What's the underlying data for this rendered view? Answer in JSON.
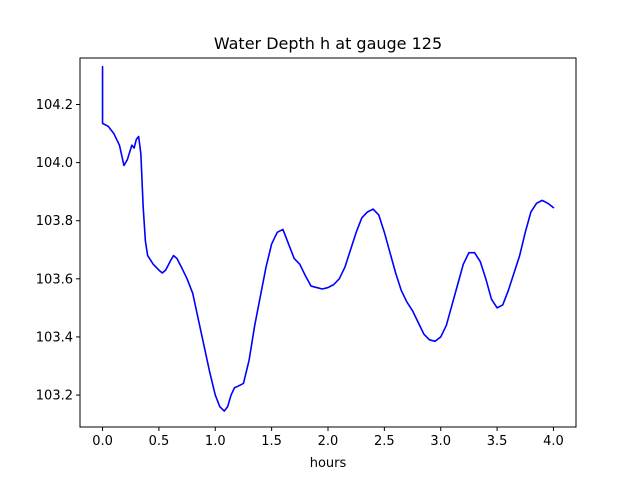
{
  "chart_data": {
    "type": "line",
    "title": "Water Depth h at gauge 125",
    "xlabel": "hours",
    "ylabel": "",
    "xlim": [
      -0.2,
      4.2
    ],
    "ylim": [
      103.09,
      104.36
    ],
    "xticks": [
      0.0,
      0.5,
      1.0,
      1.5,
      2.0,
      2.5,
      3.0,
      3.5,
      4.0
    ],
    "xtick_labels": [
      "0.0",
      "0.5",
      "1.0",
      "1.5",
      "2.0",
      "2.5",
      "3.0",
      "3.5",
      "4.0"
    ],
    "yticks": [
      103.2,
      103.4,
      103.6,
      103.8,
      104.0,
      104.2
    ],
    "ytick_labels": [
      "103.2",
      "103.4",
      "103.6",
      "103.8",
      "104.0",
      "104.2"
    ],
    "grid": false,
    "series": [
      {
        "color": "#0000ff",
        "x": [
          0.0,
          0.0,
          0.0,
          0.05,
          0.1,
          0.15,
          0.19,
          0.22,
          0.26,
          0.28,
          0.3,
          0.32,
          0.34,
          0.36,
          0.38,
          0.4,
          0.45,
          0.5,
          0.53,
          0.56,
          0.6,
          0.63,
          0.66,
          0.7,
          0.75,
          0.8,
          0.85,
          0.9,
          0.95,
          1.0,
          1.04,
          1.08,
          1.11,
          1.14,
          1.17,
          1.2,
          1.25,
          1.3,
          1.35,
          1.4,
          1.45,
          1.5,
          1.55,
          1.6,
          1.65,
          1.7,
          1.75,
          1.8,
          1.85,
          1.9,
          1.95,
          2.0,
          2.05,
          2.1,
          2.15,
          2.2,
          2.25,
          2.3,
          2.35,
          2.4,
          2.45,
          2.5,
          2.55,
          2.6,
          2.65,
          2.7,
          2.75,
          2.8,
          2.85,
          2.9,
          2.95,
          3.0,
          3.05,
          3.1,
          3.15,
          3.2,
          3.25,
          3.3,
          3.35,
          3.4,
          3.45,
          3.5,
          3.55,
          3.6,
          3.65,
          3.7,
          3.75,
          3.8,
          3.85,
          3.9,
          3.95,
          4.0
        ],
        "y": [
          104.33,
          104.2,
          104.135,
          104.125,
          104.1,
          104.06,
          103.99,
          104.01,
          104.06,
          104.05,
          104.08,
          104.09,
          104.03,
          103.85,
          103.73,
          103.68,
          103.65,
          103.63,
          103.62,
          103.63,
          103.66,
          103.68,
          103.67,
          103.64,
          103.6,
          103.55,
          103.46,
          103.37,
          103.28,
          103.2,
          103.16,
          103.145,
          103.16,
          103.2,
          103.225,
          103.23,
          103.24,
          103.32,
          103.44,
          103.54,
          103.64,
          103.72,
          103.76,
          103.77,
          103.72,
          103.67,
          103.65,
          103.61,
          103.575,
          103.57,
          103.565,
          103.57,
          103.58,
          103.6,
          103.64,
          103.7,
          103.76,
          103.81,
          103.83,
          103.84,
          103.82,
          103.76,
          103.69,
          103.62,
          103.56,
          103.52,
          103.49,
          103.45,
          103.41,
          103.39,
          103.385,
          103.4,
          103.44,
          103.51,
          103.58,
          103.65,
          103.69,
          103.69,
          103.66,
          103.6,
          103.53,
          103.5,
          103.51,
          103.56,
          103.62,
          103.68,
          103.76,
          103.83,
          103.86,
          103.87,
          103.86,
          103.845
        ]
      }
    ]
  }
}
